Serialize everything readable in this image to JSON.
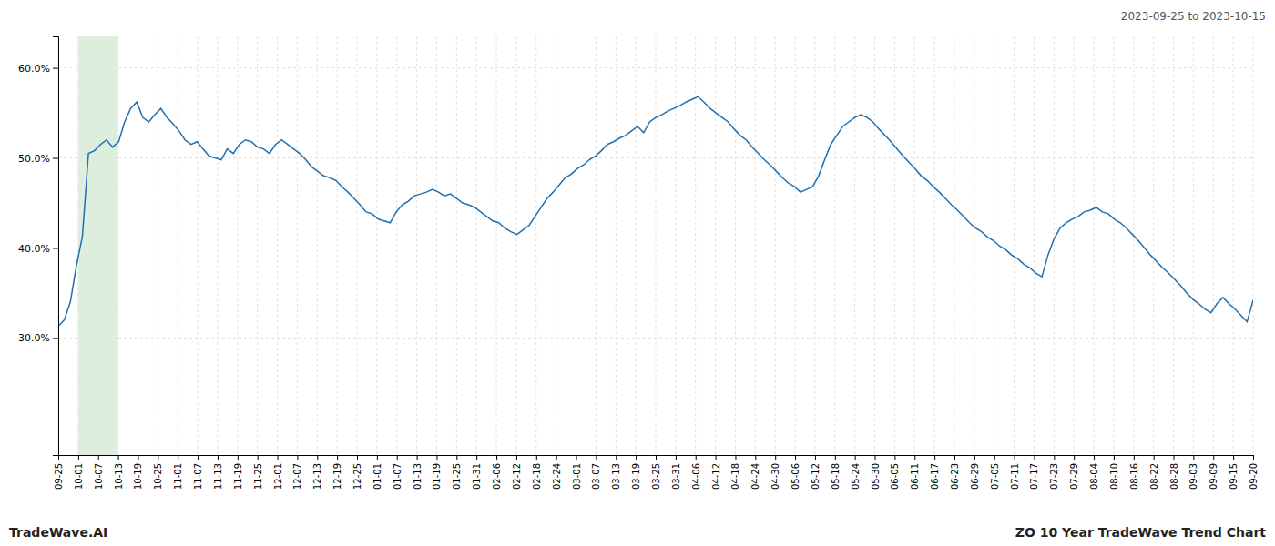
{
  "chart_data": {
    "type": "line",
    "title": "2023-09-25 to 2023-10-15",
    "annotations": [
      "TradeWave.AI",
      "ZO 10 Year TradeWave Trend Chart"
    ],
    "color": "#2070b0",
    "grid": true,
    "shaded_region": {
      "x": [
        1,
        3
      ],
      "color": "#deeede"
    },
    "xlim": [
      0,
      60
    ],
    "xticks": [
      {
        "value": 0,
        "label": "09-25"
      },
      {
        "value": 1,
        "label": "10-01"
      },
      {
        "value": 2,
        "label": "10-07"
      },
      {
        "value": 3,
        "label": "10-13"
      },
      {
        "value": 4,
        "label": "10-19"
      },
      {
        "value": 5,
        "label": "10-25"
      },
      {
        "value": 6,
        "label": "11-01"
      },
      {
        "value": 7,
        "label": "11-07"
      },
      {
        "value": 8,
        "label": "11-13"
      },
      {
        "value": 9,
        "label": "11-19"
      },
      {
        "value": 10,
        "label": "11-25"
      },
      {
        "value": 11,
        "label": "12-01"
      },
      {
        "value": 12,
        "label": "12-07"
      },
      {
        "value": 13,
        "label": "12-13"
      },
      {
        "value": 14,
        "label": "12-19"
      },
      {
        "value": 15,
        "label": "12-25"
      },
      {
        "value": 16,
        "label": "01-01"
      },
      {
        "value": 17,
        "label": "01-07"
      },
      {
        "value": 18,
        "label": "01-13"
      },
      {
        "value": 19,
        "label": "01-19"
      },
      {
        "value": 20,
        "label": "01-25"
      },
      {
        "value": 21,
        "label": "01-31"
      },
      {
        "value": 22,
        "label": "02-06"
      },
      {
        "value": 23,
        "label": "02-12"
      },
      {
        "value": 24,
        "label": "02-18"
      },
      {
        "value": 25,
        "label": "02-24"
      },
      {
        "value": 26,
        "label": "03-01"
      },
      {
        "value": 27,
        "label": "03-07"
      },
      {
        "value": 28,
        "label": "03-13"
      },
      {
        "value": 29,
        "label": "03-19"
      },
      {
        "value": 30,
        "label": "03-25"
      },
      {
        "value": 31,
        "label": "03-31"
      },
      {
        "value": 32,
        "label": "04-06"
      },
      {
        "value": 33,
        "label": "04-12"
      },
      {
        "value": 34,
        "label": "04-18"
      },
      {
        "value": 35,
        "label": "04-24"
      },
      {
        "value": 36,
        "label": "04-30"
      },
      {
        "value": 37,
        "label": "05-06"
      },
      {
        "value": 38,
        "label": "05-12"
      },
      {
        "value": 39,
        "label": "05-18"
      },
      {
        "value": 40,
        "label": "05-24"
      },
      {
        "value": 41,
        "label": "05-30"
      },
      {
        "value": 42,
        "label": "06-05"
      },
      {
        "value": 43,
        "label": "06-11"
      },
      {
        "value": 44,
        "label": "06-17"
      },
      {
        "value": 45,
        "label": "06-23"
      },
      {
        "value": 46,
        "label": "06-29"
      },
      {
        "value": 47,
        "label": "07-05"
      },
      {
        "value": 48,
        "label": "07-11"
      },
      {
        "value": 49,
        "label": "07-17"
      },
      {
        "value": 50,
        "label": "07-23"
      },
      {
        "value": 51,
        "label": "07-29"
      },
      {
        "value": 52,
        "label": "08-04"
      },
      {
        "value": 53,
        "label": "08-10"
      },
      {
        "value": 54,
        "label": "08-16"
      },
      {
        "value": 55,
        "label": "08-22"
      },
      {
        "value": 56,
        "label": "08-28"
      },
      {
        "value": 57,
        "label": "09-03"
      },
      {
        "value": 58,
        "label": "09-09"
      },
      {
        "value": 59,
        "label": "09-15"
      },
      {
        "value": 60,
        "label": "09-20"
      }
    ],
    "ylim": [
      0.17,
      0.635
    ],
    "yticks": [
      {
        "value": 0.3,
        "label": "30.0%"
      },
      {
        "value": 0.4,
        "label": "40.0%"
      },
      {
        "value": 0.5,
        "label": "50.0%"
      },
      {
        "value": 0.6,
        "label": "60.0%"
      }
    ],
    "values": [
      0.313,
      0.32,
      0.34,
      0.38,
      0.413,
      0.505,
      0.508,
      0.515,
      0.52,
      0.512,
      0.518,
      0.54,
      0.555,
      0.562,
      0.545,
      0.54,
      0.548,
      0.555,
      0.545,
      0.538,
      0.53,
      0.52,
      0.515,
      0.518,
      0.51,
      0.502,
      0.5,
      0.498,
      0.51,
      0.505,
      0.515,
      0.52,
      0.518,
      0.512,
      0.51,
      0.505,
      0.515,
      0.52,
      0.515,
      0.51,
      0.505,
      0.498,
      0.49,
      0.485,
      0.48,
      0.478,
      0.475,
      0.468,
      0.462,
      0.455,
      0.448,
      0.44,
      0.438,
      0.432,
      0.43,
      0.428,
      0.44,
      0.448,
      0.452,
      0.458,
      0.46,
      0.462,
      0.465,
      0.462,
      0.458,
      0.46,
      0.455,
      0.45,
      0.448,
      0.445,
      0.44,
      0.435,
      0.43,
      0.428,
      0.422,
      0.418,
      0.415,
      0.42,
      0.425,
      0.435,
      0.445,
      0.455,
      0.462,
      0.47,
      0.478,
      0.482,
      0.488,
      0.492,
      0.498,
      0.502,
      0.508,
      0.515,
      0.518,
      0.522,
      0.525,
      0.53,
      0.535,
      0.528,
      0.54,
      0.545,
      0.548,
      0.552,
      0.555,
      0.558,
      0.562,
      0.565,
      0.568,
      0.562,
      0.555,
      0.55,
      0.545,
      0.54,
      0.532,
      0.525,
      0.52,
      0.512,
      0.505,
      0.498,
      0.492,
      0.485,
      0.478,
      0.472,
      0.468,
      0.462,
      0.465,
      0.468,
      0.48,
      0.498,
      0.515,
      0.525,
      0.535,
      0.54,
      0.545,
      0.548,
      0.545,
      0.54,
      0.532,
      0.525,
      0.518,
      0.51,
      0.502,
      0.495,
      0.488,
      0.48,
      0.475,
      0.468,
      0.462,
      0.455,
      0.448,
      0.442,
      0.435,
      0.428,
      0.422,
      0.418,
      0.412,
      0.408,
      0.402,
      0.398,
      0.392,
      0.388,
      0.382,
      0.378,
      0.372,
      0.368,
      0.392,
      0.41,
      0.422,
      0.428,
      0.432,
      0.435,
      0.44,
      0.442,
      0.445,
      0.44,
      0.438,
      0.432,
      0.428,
      0.422,
      0.415,
      0.408,
      0.4,
      0.392,
      0.385,
      0.378,
      0.372,
      0.365,
      0.358,
      0.35,
      0.343,
      0.338,
      0.332,
      0.328,
      0.338,
      0.345,
      0.338,
      0.332,
      0.325,
      0.318,
      0.342
    ]
  }
}
